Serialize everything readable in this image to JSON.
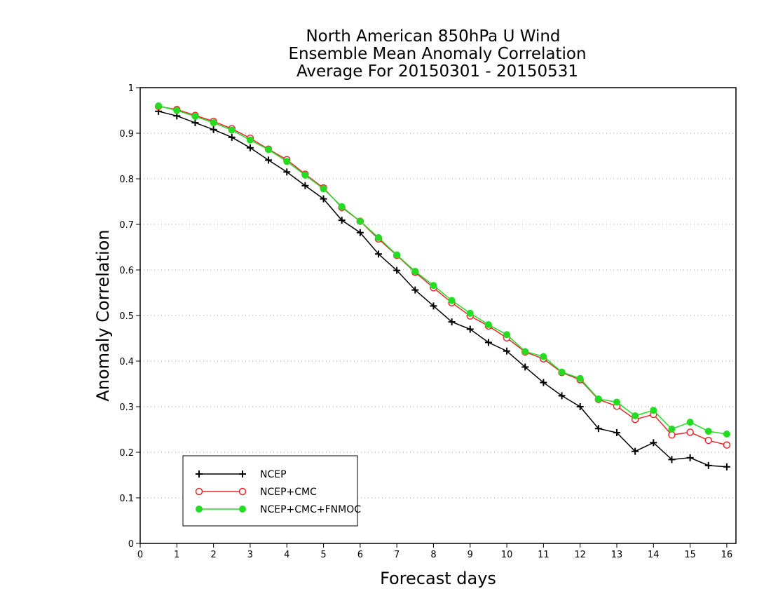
{
  "chart_data": {
    "type": "line",
    "title": [
      "North American 850hPa U Wind",
      "Ensemble Mean Anomaly Correlation",
      "Average For 20150301 - 20150531"
    ],
    "xlabel": "Forecast days",
    "ylabel": "Anomaly Correlation",
    "xlim": [
      0,
      16.25
    ],
    "ylim": [
      0,
      1
    ],
    "xticks": [
      "0",
      "1",
      "2",
      "3",
      "4",
      "5",
      "6",
      "7",
      "8",
      "9",
      "10",
      "11",
      "12",
      "13",
      "14",
      "15",
      "16"
    ],
    "yticks": [
      "0",
      "0.1",
      "0.2",
      "0.3",
      "0.4",
      "0.5",
      "0.6",
      "0.7",
      "0.8",
      "0.9",
      "1"
    ],
    "grid": "horizontal dotted",
    "legend_position": "bottom-left",
    "x": [
      0.5,
      1,
      1.5,
      2,
      2.5,
      3,
      3.5,
      4,
      4.5,
      5,
      5.5,
      6,
      6.5,
      7,
      7.5,
      8,
      8.5,
      9,
      9.5,
      10,
      10.5,
      11,
      11.5,
      12,
      12.5,
      13,
      13.5,
      14,
      14.5,
      15,
      15.5,
      16
    ],
    "series": [
      {
        "name": "NCEP",
        "color": "#000000",
        "marker": "plus",
        "values": [
          0.948,
          0.938,
          0.923,
          0.908,
          0.891,
          0.868,
          0.841,
          0.815,
          0.785,
          0.756,
          0.709,
          0.682,
          0.635,
          0.599,
          0.556,
          0.521,
          0.486,
          0.47,
          0.441,
          0.422,
          0.387,
          0.353,
          0.324,
          0.3,
          0.252,
          0.243,
          0.202,
          0.221,
          0.184,
          0.188,
          0.171,
          0.168
        ]
      },
      {
        "name": "NCEP+CMC",
        "color": "#e8282c",
        "marker": "open-circle",
        "values": [
          0.959,
          0.952,
          0.939,
          0.926,
          0.91,
          0.889,
          0.865,
          0.842,
          0.81,
          0.78,
          0.737,
          0.707,
          0.668,
          0.632,
          0.595,
          0.561,
          0.528,
          0.499,
          0.477,
          0.451,
          0.42,
          0.405,
          0.375,
          0.359,
          0.316,
          0.301,
          0.272,
          0.283,
          0.238,
          0.244,
          0.226,
          0.216
        ]
      },
      {
        "name": "NCEP+CMC+FNMOC",
        "color": "#22dd22",
        "marker": "filled-circle",
        "values": [
          0.96,
          0.95,
          0.937,
          0.923,
          0.907,
          0.885,
          0.864,
          0.838,
          0.808,
          0.778,
          0.739,
          0.707,
          0.671,
          0.633,
          0.597,
          0.566,
          0.533,
          0.505,
          0.48,
          0.458,
          0.421,
          0.41,
          0.376,
          0.362,
          0.317,
          0.31,
          0.28,
          0.292,
          0.251,
          0.266,
          0.246,
          0.24
        ]
      }
    ]
  }
}
